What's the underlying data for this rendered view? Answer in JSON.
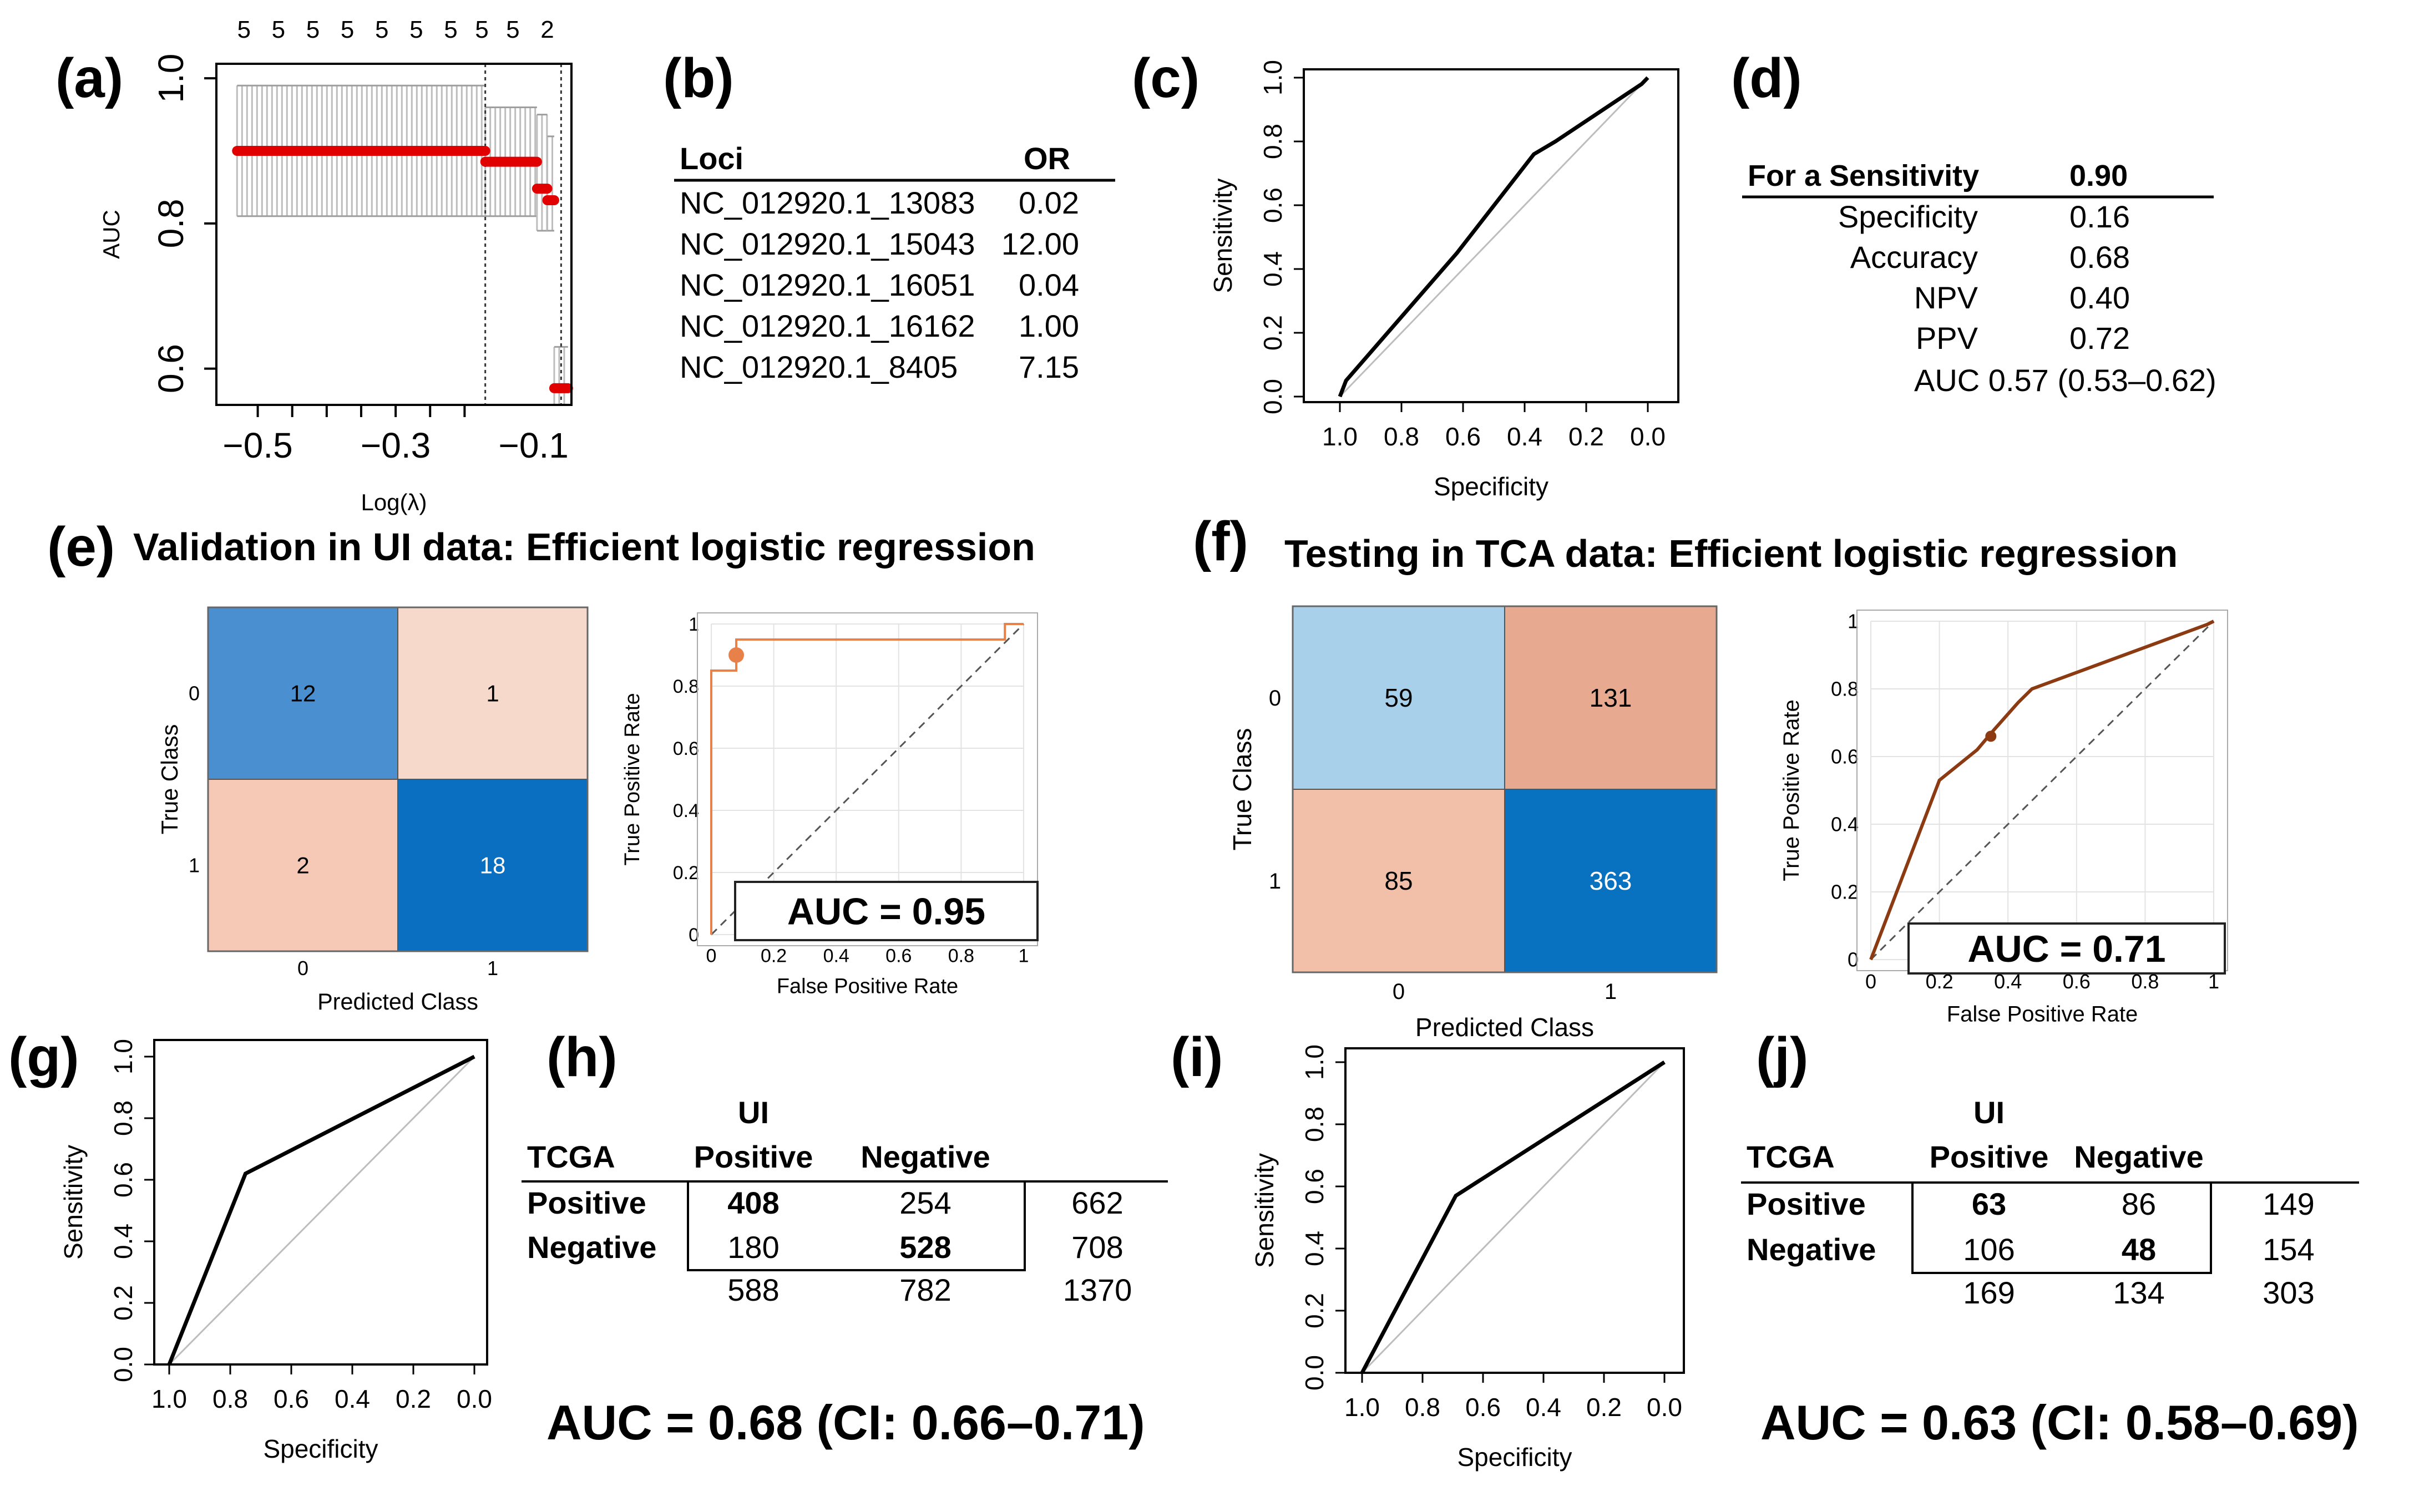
{
  "panels": {
    "a": {
      "letter": "(a)"
    },
    "b": {
      "letter": "(b)"
    },
    "c": {
      "letter": "(c)"
    },
    "d": {
      "letter": "(d)"
    },
    "e": {
      "letter": "(e)",
      "title": "Validation in UI data: Efficient logistic regression"
    },
    "f": {
      "letter": "(f)",
      "title": "Testing in TCA data: Efficient logistic regression"
    },
    "g": {
      "letter": "(g)"
    },
    "h": {
      "letter": "(h)"
    },
    "i": {
      "letter": "(i)"
    },
    "j": {
      "letter": "(j)"
    }
  },
  "chart_data": [
    {
      "id": "a",
      "type": "scatter",
      "title": "",
      "xlabel": "Log(λ)",
      "ylabel": "AUC",
      "xlim": [
        -0.56,
        -0.045
      ],
      "ylim": [
        0.55,
        1.02
      ],
      "xticks": [
        -0.5,
        -0.45,
        -0.4,
        -0.35,
        -0.3,
        -0.25,
        -0.2
      ],
      "xtick_labels": [
        {
          "v": -0.5,
          "t": "−0.5"
        },
        {
          "v": -0.3,
          "t": "−0.3"
        },
        {
          "v": -0.1,
          "t": "−0.1"
        }
      ],
      "ytick_labels": [
        {
          "v": 0.6,
          "t": "0.6"
        },
        {
          "v": 0.8,
          "t": "0.8"
        },
        {
          "v": 1.0,
          "t": "1.0"
        }
      ],
      "top_counts": [
        {
          "v": -0.52,
          "t": "5"
        },
        {
          "v": -0.47,
          "t": "5"
        },
        {
          "v": -0.42,
          "t": "5"
        },
        {
          "v": -0.37,
          "t": "5"
        },
        {
          "v": -0.32,
          "t": "5"
        },
        {
          "v": -0.27,
          "t": "5"
        },
        {
          "v": -0.22,
          "t": "5"
        },
        {
          "v": -0.175,
          "t": "5"
        },
        {
          "v": -0.13,
          "t": "5"
        },
        {
          "v": -0.08,
          "t": "2"
        }
      ],
      "cv_lines": [
        -0.17,
        -0.06
      ],
      "segments": [
        {
          "x_from": -0.53,
          "x_to": -0.17,
          "mean": 0.9,
          "lo": 0.81,
          "hi": 0.99
        },
        {
          "x_from": -0.17,
          "x_to": -0.095,
          "mean": 0.885,
          "lo": 0.81,
          "hi": 0.96
        },
        {
          "x_from": -0.095,
          "x_to": -0.08,
          "mean": 0.848,
          "lo": 0.79,
          "hi": 0.95
        },
        {
          "x_from": -0.08,
          "x_to": -0.07,
          "mean": 0.832,
          "lo": 0.79,
          "hi": 0.92
        },
        {
          "x_from": -0.07,
          "x_to": -0.05,
          "mean": 0.573,
          "lo": 0.55,
          "hi": 0.63
        }
      ]
    },
    {
      "id": "c",
      "type": "line",
      "xlabel": "Specificity",
      "ylabel": "Sensitivity",
      "xlim": [
        1.0,
        0.0
      ],
      "ylim": [
        0.0,
        1.0
      ],
      "xtick_labels": [
        "1.0",
        "0.8",
        "0.6",
        "0.4",
        "0.2",
        "0.0"
      ],
      "ytick_labels": [
        "0.0",
        "0.2",
        "0.4",
        "0.6",
        "0.8",
        "1.0"
      ],
      "curve_x": [
        1.0,
        0.98,
        0.62,
        0.37,
        0.3,
        0.02,
        0.0
      ],
      "curve_y": [
        0.0,
        0.05,
        0.45,
        0.76,
        0.8,
        0.98,
        1.0
      ]
    },
    {
      "id": "e-roc",
      "type": "line",
      "xlabel": "False Positive Rate",
      "ylabel": "True Positive Rate",
      "xlim": [
        0,
        1
      ],
      "ylim": [
        0,
        1
      ],
      "tick_labels": [
        "0",
        "0.2",
        "0.4",
        "0.6",
        "0.8",
        "1"
      ],
      "curve_x": [
        0,
        0,
        0.08,
        0.08,
        0.94,
        0.94,
        1.0
      ],
      "curve_y": [
        0,
        0.85,
        0.85,
        0.95,
        0.95,
        1.0,
        1.0
      ],
      "operating_point": [
        0.08,
        0.9
      ],
      "auc_label": "AUC = 0.95"
    },
    {
      "id": "f-roc",
      "type": "line",
      "xlabel": "False Positive Rate",
      "ylabel": "True Positive Rate",
      "xlim": [
        0,
        1
      ],
      "ylim": [
        0,
        1
      ],
      "tick_labels": [
        "0",
        "0.2",
        "0.4",
        "0.6",
        "0.8",
        "1"
      ],
      "curve_x": [
        0,
        0.2,
        0.31,
        0.36,
        0.43,
        0.47,
        0.98,
        1.0
      ],
      "curve_y": [
        0,
        0.53,
        0.62,
        0.68,
        0.76,
        0.8,
        0.99,
        1.0
      ],
      "operating_point": [
        0.35,
        0.66
      ],
      "auc_label": "AUC = 0.71"
    },
    {
      "id": "g",
      "type": "line",
      "xlabel": "Specificity",
      "ylabel": "Sensitivity",
      "xlim": [
        1.0,
        0.0
      ],
      "ylim": [
        0.0,
        1.0
      ],
      "xtick_labels": [
        "1.0",
        "0.8",
        "0.6",
        "0.4",
        "0.2",
        "0.0"
      ],
      "ytick_labels": [
        "0.0",
        "0.2",
        "0.4",
        "0.6",
        "0.8",
        "1.0"
      ],
      "curve_x": [
        1.0,
        0.75,
        0.0
      ],
      "curve_y": [
        0.0,
        0.62,
        1.0
      ]
    },
    {
      "id": "i",
      "type": "line",
      "xlabel": "Specificity",
      "ylabel": "Sensitivity",
      "xlim": [
        1.0,
        0.0
      ],
      "ylim": [
        0.0,
        1.0
      ],
      "xtick_labels": [
        "1.0",
        "0.8",
        "0.6",
        "0.4",
        "0.2",
        "0.0"
      ],
      "ytick_labels": [
        "0.0",
        "0.2",
        "0.4",
        "0.6",
        "0.8",
        "1.0"
      ],
      "curve_x": [
        1.0,
        0.69,
        0.0
      ],
      "curve_y": [
        0.0,
        0.57,
        1.0
      ]
    },
    {
      "id": "e-cm",
      "type": "heatmap",
      "xlabel": "Predicted Class",
      "ylabel": "True Class",
      "row_labels": [
        "0",
        "1"
      ],
      "col_labels": [
        "0",
        "1"
      ],
      "values": [
        [
          12,
          1
        ],
        [
          2,
          18
        ]
      ],
      "colors": [
        [
          "#4a90d0",
          "#f7d9cc"
        ],
        [
          "#f5c9b6",
          "#0a6fc0"
        ]
      ],
      "text_colors": [
        [
          "#000000",
          "#000000"
        ],
        [
          "#000000",
          "#ffffff"
        ]
      ]
    },
    {
      "id": "f-cm",
      "type": "heatmap",
      "xlabel": "Predicted Class",
      "ylabel": "True Class",
      "row_labels": [
        "0",
        "1"
      ],
      "col_labels": [
        "0",
        "1"
      ],
      "values": [
        [
          59,
          131
        ],
        [
          85,
          363
        ]
      ],
      "colors": [
        [
          "#a8d0eb",
          "#e7aa91"
        ],
        [
          "#f2bfa9",
          "#0972c0"
        ]
      ],
      "text_colors": [
        [
          "#000000",
          "#000000"
        ],
        [
          "#000000",
          "#ffffff"
        ]
      ]
    },
    {
      "id": "b",
      "type": "table",
      "headers": [
        "Loci",
        "OR"
      ],
      "rows": [
        [
          "NC_012920.1_13083",
          "0.02"
        ],
        [
          "NC_012920.1_15043",
          "12.00"
        ],
        [
          "NC_012920.1_16051",
          "0.04"
        ],
        [
          "NC_012920.1_16162",
          "1.00"
        ],
        [
          "NC_012920.1_8405",
          "7.15"
        ]
      ]
    },
    {
      "id": "d",
      "type": "table",
      "header": [
        "For a Sensitivity",
        "0.90"
      ],
      "rows": [
        [
          "Specificity",
          "0.16"
        ],
        [
          "Accuracy",
          "0.68"
        ],
        [
          "NPV",
          "0.40"
        ],
        [
          "PPV",
          "0.72"
        ]
      ],
      "auc_line": "AUC 0.57 (0.53–0.62)"
    },
    {
      "id": "h",
      "type": "table",
      "col_group": "UI",
      "row_group": "TCGA",
      "col_headers": [
        "Positive",
        "Negative"
      ],
      "row_headers": [
        "Positive",
        "Negative"
      ],
      "cells": [
        [
          "408",
          "254",
          "662"
        ],
        [
          "180",
          "528",
          "708"
        ]
      ],
      "col_totals": [
        "588",
        "782",
        "1370"
      ],
      "auc_line": "AUC = 0.68 (CI: 0.66–0.71)"
    },
    {
      "id": "j",
      "type": "table",
      "col_group": "UI",
      "row_group": "TCGA",
      "col_headers": [
        "Positive",
        "Negative"
      ],
      "row_headers": [
        "Positive",
        "Negative"
      ],
      "cells": [
        [
          "63",
          "86",
          "149"
        ],
        [
          "106",
          "48",
          "154"
        ]
      ],
      "col_totals": [
        "169",
        "134",
        "303"
      ],
      "auc_line": "AUC = 0.63 (CI: 0.58–0.69)"
    }
  ]
}
